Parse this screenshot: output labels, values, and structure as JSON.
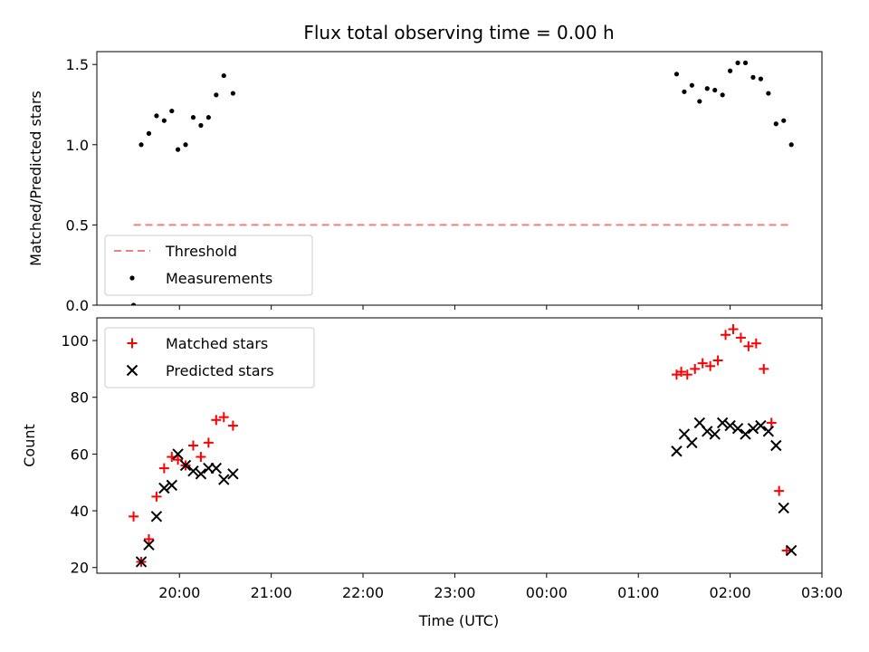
{
  "chart_data": {
    "title": "Flux total observing time = 0.00 h",
    "xlabel": "Time (UTC)",
    "xlim": [
      "19:06",
      "03:00"
    ],
    "xticks": [
      "20:00",
      "21:00",
      "22:00",
      "23:00",
      "00:00",
      "01:00",
      "02:00",
      "03:00"
    ],
    "panels": [
      {
        "type": "scatter",
        "ylabel": "Matched/Predicted stars",
        "ylim": [
          0,
          1.58
        ],
        "yticks": [
          "0.0",
          "0.5",
          "1.0",
          "1.5"
        ],
        "legend_position": "lower-left",
        "series": [
          {
            "name": "Threshold",
            "style": "dashed-line",
            "color": "#f08080",
            "x": [
              "19:30",
              "02:40"
            ],
            "y": [
              0.5,
              0.5
            ]
          },
          {
            "name": "Measurements",
            "style": "dot",
            "color": "#000000",
            "x": [
              "19:30",
              "19:35",
              "19:40",
              "19:45",
              "19:50",
              "19:55",
              "19:59",
              "20:04",
              "20:09",
              "20:14",
              "20:19",
              "20:24",
              "20:29",
              "20:35",
              "01:25",
              "01:30",
              "01:35",
              "01:40",
              "01:45",
              "01:50",
              "01:55",
              "02:00",
              "02:05",
              "02:10",
              "02:15",
              "02:20",
              "02:25",
              "02:30",
              "02:35",
              "02:40"
            ],
            "y": [
              0.0,
              1.0,
              1.07,
              1.18,
              1.15,
              1.21,
              0.97,
              1.0,
              1.17,
              1.12,
              1.17,
              1.31,
              1.43,
              1.32,
              1.44,
              1.33,
              1.37,
              1.27,
              1.35,
              1.34,
              1.31,
              1.46,
              1.51,
              1.51,
              1.42,
              1.41,
              1.32,
              1.13,
              1.15,
              1.0
            ]
          }
        ]
      },
      {
        "type": "scatter",
        "ylabel": "Count",
        "ylim": [
          18,
          108
        ],
        "yticks": [
          "20",
          "40",
          "60",
          "80",
          "100"
        ],
        "legend_position": "upper-left",
        "series": [
          {
            "name": "Matched stars",
            "marker": "plus",
            "color": "#ff0000",
            "x": [
              "19:30",
              "19:35",
              "19:40",
              "19:45",
              "19:50",
              "19:55",
              "19:59",
              "20:04",
              "20:09",
              "20:14",
              "20:19",
              "20:24",
              "20:29",
              "20:35",
              "01:25",
              "01:28",
              "01:32",
              "01:37",
              "01:42",
              "01:47",
              "01:52",
              "01:57",
              "02:02",
              "02:07",
              "02:12",
              "02:17",
              "02:22",
              "02:27",
              "02:32",
              "02:37"
            ],
            "y": [
              38,
              22,
              30,
              45,
              55,
              59,
              58,
              56,
              63,
              59,
              64,
              72,
              73,
              70,
              88,
              89,
              88,
              90,
              92,
              91,
              93,
              102,
              104,
              101,
              98,
              99,
              90,
              71,
              47,
              26
            ]
          },
          {
            "name": "Predicted stars",
            "marker": "x",
            "color": "#000000",
            "x": [
              "19:35",
              "19:40",
              "19:45",
              "19:50",
              "19:55",
              "19:59",
              "20:04",
              "20:09",
              "20:14",
              "20:19",
              "20:24",
              "20:29",
              "20:35",
              "01:25",
              "01:30",
              "01:35",
              "01:40",
              "01:45",
              "01:50",
              "01:55",
              "02:00",
              "02:05",
              "02:10",
              "02:15",
              "02:20",
              "02:25",
              "02:30",
              "02:35",
              "02:40"
            ],
            "y": [
              22,
              28,
              38,
              48,
              49,
              60,
              56,
              54,
              53,
              55,
              55,
              51,
              53,
              61,
              67,
              64,
              71,
              68,
              67,
              71,
              70,
              69,
              67,
              69,
              70,
              68,
              63,
              41,
              26
            ]
          }
        ]
      }
    ]
  }
}
